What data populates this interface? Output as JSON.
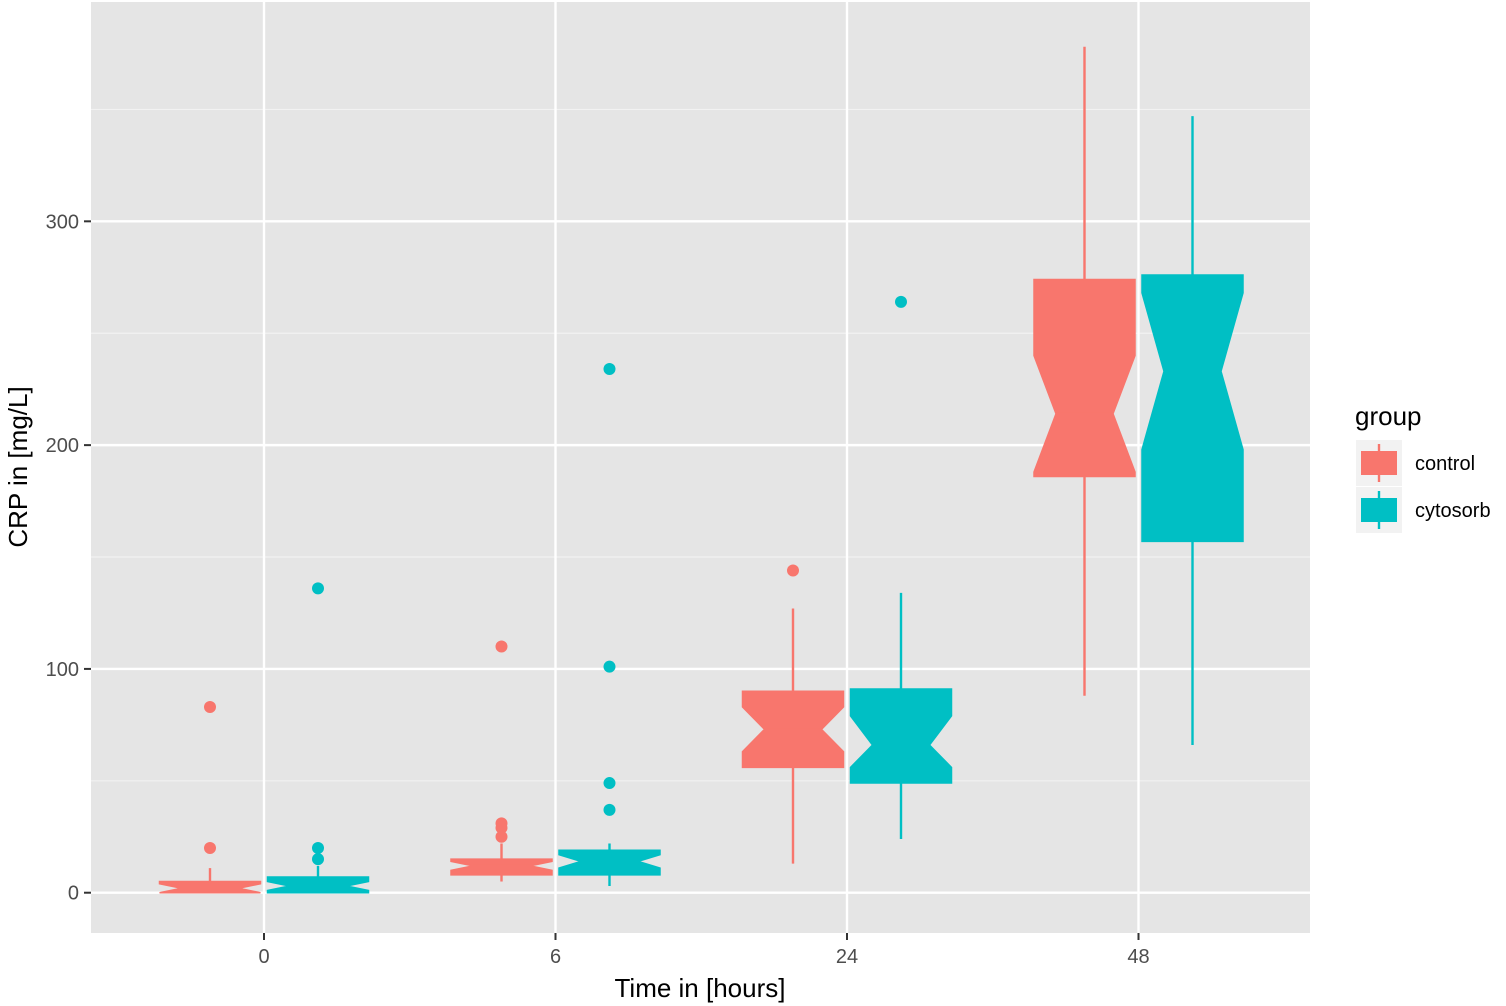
{
  "chart_data": {
    "type": "boxplot",
    "notched": true,
    "xlabel": "Time in [hours]",
    "ylabel": "CRP in [mg/L]",
    "categories": [
      "0",
      "6",
      "24",
      "48"
    ],
    "y_ticks": [
      0,
      100,
      200,
      300
    ],
    "ylim": [
      -18,
      398
    ],
    "grid": true,
    "panel_background": "#e5e5e5",
    "legend": {
      "title": "group",
      "position": "right",
      "entries": [
        "control",
        "cytosorb"
      ]
    },
    "series": [
      {
        "name": "control",
        "color": "#f8766d",
        "boxes": [
          {
            "category": "0",
            "q1": 0,
            "median": 2,
            "q3": 5,
            "whisker_low": 0,
            "whisker_high": 11,
            "notch_low": 0,
            "notch_high": 4,
            "outliers": [
              83,
              20
            ]
          },
          {
            "category": "6",
            "q1": 8,
            "median": 12,
            "q3": 15,
            "whisker_low": 5,
            "whisker_high": 22,
            "notch_low": 10,
            "notch_high": 14,
            "outliers": [
              110,
              31,
              29,
              25
            ]
          },
          {
            "category": "24",
            "q1": 56,
            "median": 73,
            "q3": 90,
            "whisker_low": 13,
            "whisker_high": 127,
            "notch_low": 63,
            "notch_high": 83,
            "outliers": [
              144
            ]
          },
          {
            "category": "48",
            "q1": 186,
            "median": 214,
            "q3": 274,
            "whisker_low": 88,
            "whisker_high": 378,
            "notch_low": 188,
            "notch_high": 240,
            "outliers": []
          }
        ]
      },
      {
        "name": "cytosorb",
        "color": "#00bfc4",
        "boxes": [
          {
            "category": "0",
            "q1": 0,
            "median": 3,
            "q3": 7,
            "whisker_low": 0,
            "whisker_high": 12,
            "notch_low": 1,
            "notch_high": 5,
            "outliers": [
              136,
              20,
              15
            ]
          },
          {
            "category": "6",
            "q1": 8,
            "median": 14,
            "q3": 19,
            "whisker_low": 3,
            "whisker_high": 22,
            "notch_low": 11,
            "notch_high": 17,
            "outliers": [
              234,
              101,
              49,
              37
            ]
          },
          {
            "category": "24",
            "q1": 49,
            "median": 66,
            "q3": 91,
            "whisker_low": 24,
            "whisker_high": 134,
            "notch_low": 56,
            "notch_high": 79,
            "outliers": [
              264
            ]
          },
          {
            "category": "48",
            "q1": 157,
            "median": 233,
            "q3": 276,
            "whisker_low": 66,
            "whisker_high": 347,
            "notch_low": 198,
            "notch_high": 268,
            "outliers": []
          }
        ]
      }
    ]
  }
}
